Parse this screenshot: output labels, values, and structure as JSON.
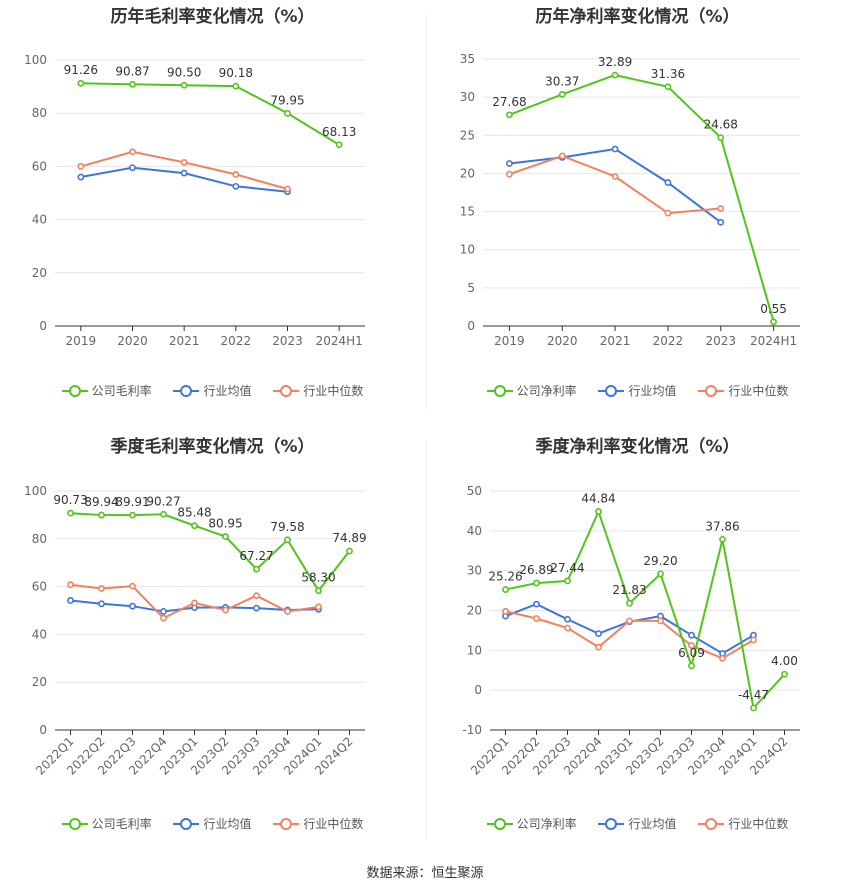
{
  "colors": {
    "company": "#52c41a",
    "avg": "#3f74d9",
    "median": "#f0825f"
  },
  "legend_common": {
    "avg": "行业均值",
    "median": "行业中位数"
  },
  "source": "数据来源：恒生聚源",
  "chart_data": [
    {
      "type": "line",
      "title": "历年毛利率变化情况（%）",
      "categories": [
        "2019",
        "2020",
        "2021",
        "2022",
        "2023",
        "2024H1"
      ],
      "ylim": [
        0,
        100
      ],
      "yticks": [
        0,
        20,
        40,
        60,
        80,
        100
      ],
      "rotate_xlabels": false,
      "grid": true,
      "legend_position": "bottom",
      "legend_company": "公司毛利率",
      "series": [
        {
          "name": "公司毛利率",
          "key": "company",
          "values": [
            91.26,
            90.87,
            90.5,
            90.18,
            79.95,
            68.13
          ],
          "labels": [
            "91.26",
            "90.87",
            "90.50",
            "90.18",
            "79.95",
            "68.13"
          ]
        },
        {
          "name": "行业均值",
          "key": "avg",
          "values": [
            56.0,
            59.5,
            57.5,
            52.5,
            50.5,
            null
          ]
        },
        {
          "name": "行业中位数",
          "key": "median",
          "values": [
            60.0,
            65.5,
            61.5,
            57.0,
            51.5,
            null
          ]
        }
      ]
    },
    {
      "type": "line",
      "title": "历年净利率变化情况（%）",
      "categories": [
        "2019",
        "2020",
        "2021",
        "2022",
        "2023",
        "2024H1"
      ],
      "ylim": [
        0,
        35
      ],
      "yticks": [
        0,
        5,
        10,
        15,
        20,
        25,
        30,
        35
      ],
      "rotate_xlabels": false,
      "grid": true,
      "legend_position": "bottom",
      "legend_company": "公司净利率",
      "series": [
        {
          "name": "公司净利率",
          "key": "company",
          "values": [
            27.68,
            30.37,
            32.89,
            31.36,
            24.68,
            0.55
          ],
          "labels": [
            "27.68",
            "30.37",
            "32.89",
            "31.36",
            "24.68",
            "0.55"
          ]
        },
        {
          "name": "行业均值",
          "key": "avg",
          "values": [
            21.3,
            22.1,
            23.2,
            18.8,
            13.6,
            null
          ]
        },
        {
          "name": "行业中位数",
          "key": "median",
          "values": [
            19.9,
            22.3,
            19.6,
            14.8,
            15.4,
            null
          ]
        }
      ]
    },
    {
      "type": "line",
      "title": "季度毛利率变化情况（%）",
      "categories": [
        "2022Q1",
        "2022Q2",
        "2022Q3",
        "2022Q4",
        "2023Q1",
        "2023Q2",
        "2023Q3",
        "2023Q4",
        "2024Q1",
        "2024Q2"
      ],
      "ylim": [
        0,
        100
      ],
      "yticks": [
        0,
        20,
        40,
        60,
        80,
        100
      ],
      "rotate_xlabels": true,
      "grid": true,
      "legend_position": "bottom",
      "legend_company": "公司毛利率",
      "series": [
        {
          "name": "公司毛利率",
          "key": "company",
          "values": [
            90.73,
            89.94,
            89.91,
            90.27,
            85.48,
            80.95,
            67.27,
            79.58,
            58.3,
            74.89
          ],
          "labels": [
            "90.73",
            "89.94",
            "89.91",
            "90.27",
            "85.48",
            "80.95",
            "67.27",
            "79.58",
            "58.30",
            "74.89"
          ]
        },
        {
          "name": "行业均值",
          "key": "avg",
          "values": [
            54.2,
            52.8,
            51.8,
            49.6,
            51.2,
            51.3,
            51.0,
            50.2,
            50.5,
            null
          ]
        },
        {
          "name": "行业中位数",
          "key": "median",
          "values": [
            60.8,
            59.2,
            60.2,
            46.8,
            53.2,
            50.2,
            56.2,
            49.6,
            51.5,
            null
          ]
        }
      ]
    },
    {
      "type": "line",
      "title": "季度净利率变化情况（%）",
      "categories": [
        "2022Q1",
        "2022Q2",
        "2022Q3",
        "2022Q4",
        "2023Q1",
        "2023Q2",
        "2023Q3",
        "2023Q4",
        "2024Q1",
        "2024Q2"
      ],
      "ylim": [
        -10,
        50
      ],
      "yticks": [
        -10,
        0,
        10,
        20,
        30,
        40,
        50
      ],
      "rotate_xlabels": true,
      "grid": true,
      "legend_position": "bottom",
      "legend_company": "公司净利率",
      "series": [
        {
          "name": "公司净利率",
          "key": "company",
          "values": [
            25.26,
            26.89,
            27.44,
            44.84,
            21.83,
            29.2,
            6.09,
            37.86,
            -4.47,
            4.0
          ],
          "labels": [
            "25.26",
            "26.89",
            "27.44",
            "44.84",
            "21.83",
            "29.20",
            "6.09",
            "37.86",
            "-4.47",
            "4.00"
          ]
        },
        {
          "name": "行业均值",
          "key": "avg",
          "values": [
            18.6,
            21.6,
            17.8,
            14.2,
            17.2,
            18.6,
            13.8,
            9.2,
            13.8,
            null
          ]
        },
        {
          "name": "行业中位数",
          "key": "median",
          "values": [
            19.8,
            18.0,
            15.6,
            10.8,
            17.4,
            17.4,
            11.2,
            8.0,
            12.6,
            null
          ]
        }
      ]
    }
  ]
}
